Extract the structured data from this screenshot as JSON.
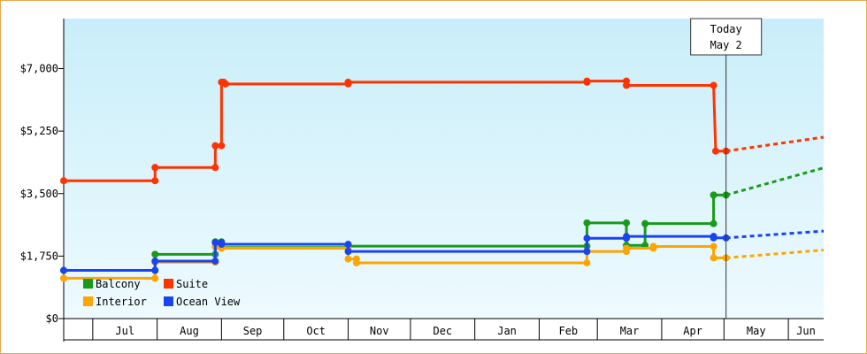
{
  "chart_data": {
    "type": "line",
    "step": true,
    "title": "",
    "xlabel": "",
    "ylabel": "",
    "ylim": [
      0,
      8400
    ],
    "y_ticks": [
      {
        "value": 0,
        "label": "$0"
      },
      {
        "value": 1750,
        "label": "$1,750"
      },
      {
        "value": 3500,
        "label": "$3,500"
      },
      {
        "value": 5250,
        "label": "$5,250"
      },
      {
        "value": 7000,
        "label": "$7,000"
      }
    ],
    "x_domain": [
      "2013-06-17",
      "2014-06-18"
    ],
    "months": [
      {
        "label": "",
        "start": "2013-06-17"
      },
      {
        "label": "Jul",
        "start": "2013-07-01"
      },
      {
        "label": "Aug",
        "start": "2013-08-01"
      },
      {
        "label": "Sep",
        "start": "2013-09-01"
      },
      {
        "label": "Oct",
        "start": "2013-10-01"
      },
      {
        "label": "Nov",
        "start": "2013-11-01"
      },
      {
        "label": "Dec",
        "start": "2013-12-01"
      },
      {
        "label": "Jan",
        "start": "2014-01-01"
      },
      {
        "label": "Feb",
        "start": "2014-02-01"
      },
      {
        "label": "Mar",
        "start": "2014-03-01"
      },
      {
        "label": "Apr",
        "start": "2014-04-01"
      },
      {
        "label": "May",
        "start": "2014-05-01"
      },
      {
        "label": "Jun",
        "start": "2014-06-01"
      }
    ],
    "grid": false,
    "legend_position": "bottom-left",
    "today": {
      "line1": "Today",
      "line2": "May 2",
      "date": "2014-05-02"
    },
    "series": [
      {
        "name": "Balcony",
        "color": "#1a9a1a",
        "points": [
          [
            "2013-06-17",
            1350
          ],
          [
            "2013-07-31",
            1350
          ],
          [
            "2013-07-31",
            1800
          ],
          [
            "2013-08-29",
            1800
          ],
          [
            "2013-08-29",
            2150
          ],
          [
            "2013-09-01",
            2150
          ],
          [
            "2013-09-01",
            1990
          ],
          [
            "2013-11-01",
            1990
          ],
          [
            "2013-11-01",
            2030
          ],
          [
            "2014-02-24",
            2030
          ],
          [
            "2014-02-24",
            2680
          ],
          [
            "2014-03-15",
            2680
          ],
          [
            "2014-03-15",
            2050
          ],
          [
            "2014-03-24",
            2050
          ],
          [
            "2014-03-24",
            2660
          ],
          [
            "2014-04-26",
            2660
          ],
          [
            "2014-04-26",
            3460
          ],
          [
            "2014-05-02",
            3460
          ]
        ],
        "forecast": [
          [
            "2014-05-02",
            3460
          ],
          [
            "2014-06-18",
            4220
          ]
        ]
      },
      {
        "name": "Suite",
        "color": "#ff3300",
        "points": [
          [
            "2013-06-17",
            3860
          ],
          [
            "2013-07-31",
            3860
          ],
          [
            "2013-07-31",
            4230
          ],
          [
            "2013-08-29",
            4230
          ],
          [
            "2013-08-29",
            4840
          ],
          [
            "2013-09-01",
            4840
          ],
          [
            "2013-09-01",
            6620
          ],
          [
            "2013-09-02",
            6620
          ],
          [
            "2013-09-03",
            6570
          ],
          [
            "2013-11-01",
            6570
          ],
          [
            "2013-11-01",
            6620
          ],
          [
            "2014-02-24",
            6620
          ],
          [
            "2014-02-24",
            6650
          ],
          [
            "2014-03-15",
            6650
          ],
          [
            "2014-03-15",
            6530
          ],
          [
            "2014-04-26",
            6530
          ],
          [
            "2014-04-27",
            4690
          ],
          [
            "2014-05-02",
            4690
          ]
        ],
        "forecast": [
          [
            "2014-05-02",
            4690
          ],
          [
            "2014-06-18",
            5080
          ]
        ]
      },
      {
        "name": "Interior",
        "color": "#ffa500",
        "points": [
          [
            "2013-06-17",
            1130
          ],
          [
            "2013-07-31",
            1130
          ],
          [
            "2013-07-31",
            1580
          ],
          [
            "2013-08-29",
            1580
          ],
          [
            "2013-08-29",
            2010
          ],
          [
            "2013-09-01",
            2010
          ],
          [
            "2013-09-01",
            1970
          ],
          [
            "2013-11-01",
            1970
          ],
          [
            "2013-11-01",
            1670
          ],
          [
            "2013-11-05",
            1670
          ],
          [
            "2013-11-05",
            1560
          ],
          [
            "2014-02-24",
            1560
          ],
          [
            "2014-02-24",
            1880
          ],
          [
            "2014-03-15",
            1880
          ],
          [
            "2014-03-15",
            1970
          ],
          [
            "2014-03-28",
            1970
          ],
          [
            "2014-03-28",
            2020
          ],
          [
            "2014-04-26",
            2020
          ],
          [
            "2014-04-26",
            1700
          ],
          [
            "2014-05-02",
            1700
          ]
        ],
        "forecast": [
          [
            "2014-05-02",
            1700
          ],
          [
            "2014-06-18",
            1920
          ]
        ]
      },
      {
        "name": "Ocean View",
        "color": "#1a44ee",
        "points": [
          [
            "2013-06-17",
            1350
          ],
          [
            "2013-07-31",
            1350
          ],
          [
            "2013-07-31",
            1610
          ],
          [
            "2013-08-29",
            1610
          ],
          [
            "2013-08-29",
            2130
          ],
          [
            "2013-09-01",
            2130
          ],
          [
            "2013-09-01",
            2080
          ],
          [
            "2013-11-01",
            2080
          ],
          [
            "2013-11-01",
            1880
          ],
          [
            "2014-02-24",
            1880
          ],
          [
            "2014-02-24",
            2250
          ],
          [
            "2014-03-15",
            2250
          ],
          [
            "2014-03-15",
            2300
          ],
          [
            "2014-04-26",
            2300
          ],
          [
            "2014-04-26",
            2260
          ],
          [
            "2014-05-02",
            2260
          ]
        ],
        "forecast": [
          [
            "2014-05-02",
            2260
          ],
          [
            "2014-06-18",
            2450
          ]
        ]
      }
    ]
  }
}
